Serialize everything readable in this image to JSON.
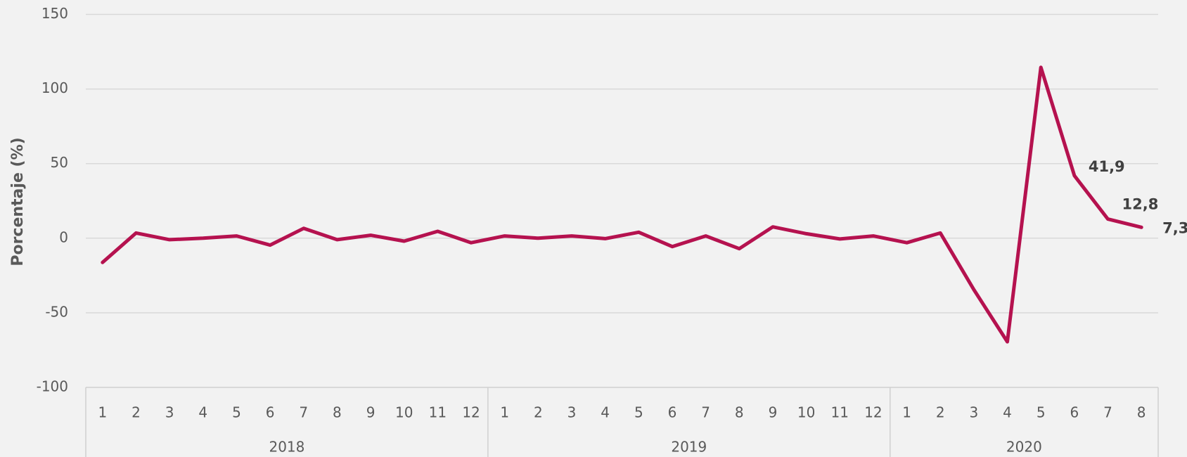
{
  "chart_data": {
    "type": "line",
    "y_label": "Porcentaje (%)",
    "groups": [
      {
        "label": "2018",
        "categories": [
          "1",
          "2",
          "3",
          "4",
          "5",
          "6",
          "7",
          "8",
          "9",
          "10",
          "11",
          "12"
        ]
      },
      {
        "label": "2019",
        "categories": [
          "1",
          "2",
          "3",
          "4",
          "5",
          "6",
          "7",
          "8",
          "9",
          "10",
          "11",
          "12"
        ]
      },
      {
        "label": "2020",
        "categories": [
          "1",
          "2",
          "3",
          "4",
          "5",
          "6",
          "7",
          "8"
        ]
      }
    ],
    "series": [
      {
        "color": "#b5124f",
        "values": [
          -16.2,
          3.5,
          -1,
          0,
          1.5,
          -4.6,
          6.6,
          -1,
          2,
          -2,
          4.6,
          -3,
          1.5,
          0,
          1.5,
          -0.3,
          4,
          -5.6,
          1.5,
          -7,
          7.6,
          3,
          -0.5,
          1.5,
          -3,
          3.5,
          -34.5,
          -69.4,
          114.5,
          41.9,
          12.8,
          7.3
        ],
        "value_labels": [
          null,
          null,
          null,
          null,
          null,
          null,
          null,
          null,
          null,
          null,
          null,
          null,
          null,
          null,
          null,
          null,
          null,
          null,
          null,
          null,
          null,
          null,
          null,
          null,
          null,
          null,
          null,
          null,
          null,
          "41,9",
          "12,8",
          "7,3"
        ]
      }
    ],
    "ylim": [
      -100,
      150
    ],
    "yticks": [
      -100,
      -50,
      0,
      50,
      100,
      150
    ],
    "grid": true
  }
}
